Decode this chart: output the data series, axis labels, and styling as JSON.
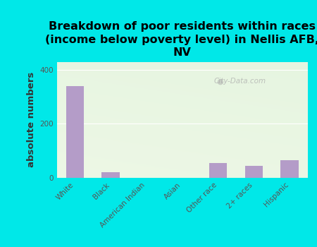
{
  "title": "Breakdown of poor residents within races\n(income below poverty level) in Nellis AFB,\nNV",
  "categories": [
    "White",
    "Black",
    "American Indian",
    "Asian",
    "Other race",
    "2+ races",
    "Hispanic"
  ],
  "values": [
    340,
    20,
    0,
    0,
    55,
    45,
    65
  ],
  "bar_color": "#b49cc8",
  "ylabel": "absolute numbers",
  "ylim": [
    0,
    430
  ],
  "yticks": [
    0,
    200,
    400
  ],
  "outer_bg": "#00e8e8",
  "watermark": "City-Data.com",
  "title_fontsize": 11.5,
  "ylabel_fontsize": 9.5,
  "tick_fontsize": 7.5
}
